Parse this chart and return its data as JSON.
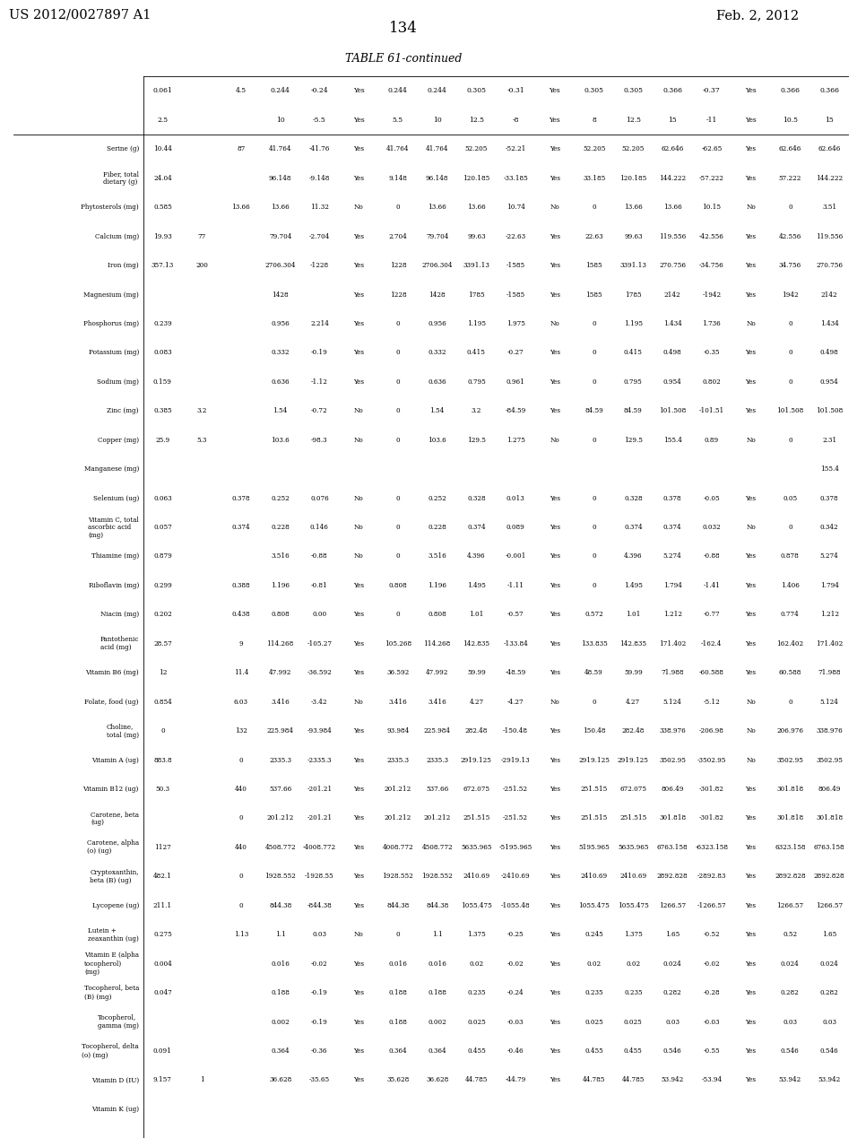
{
  "title_left": "US 2012/0027897 A1",
  "title_right": "Feb. 2, 2012",
  "page_num": "134",
  "table_title": "TABLE 61-continued",
  "row_labels": [
    "Serine (g)",
    "Fiber, total\ndietary (g)",
    "Phytosterols (mg)",
    "Calcium (mg)",
    "Iron (mg)",
    "Magnesium (mg)",
    "Phosphorus (mg)",
    "Potassium (mg)",
    "Sodium (mg)",
    "Zinc (mg)",
    "Copper (mg)",
    "Manganese (mg)",
    "Selenium (ug)",
    "Vitamin C, total\nascorbic acid\n(mg)",
    "Thiamine (mg)",
    "Riboflavin (mg)",
    "Niacin (mg)",
    "Pantothenic\nacid (mg)",
    "Vitamin B6 (mg)",
    "Folate, food (ug)",
    "Choline,\ntotal (mg)",
    "Vitamin A (ug)",
    "Vitamin B12 (ug)",
    "Carotene, beta\n(ug)",
    "Carotene, alpha\n(o) (ug)",
    "Cryptoxanthin,\nbeta (B) (ug)",
    "Lycopene (ug)",
    "Lutein +\nzeaxanthin (ug)",
    "Vitamin E (alpha\ntocopherol)\n(mg)",
    "Tocopherol, beta\n(B) (mg)",
    "Tocopherol,\ngamma (mg)",
    "Tocopherol, delta\n(o) (mg)",
    "Vitamin D (IU)",
    "Vitamin K (ug)"
  ],
  "col1_vals": [
    "0.061",
    "2.5"
  ],
  "col2_vals": [
    "",
    "4.5"
  ],
  "col3_vals": [
    "0.244",
    "10"
  ],
  "col4_vals": [
    "-0.24",
    "-5.5"
  ],
  "col5_vals": [
    "Yes",
    "Yes"
  ],
  "col6_vals": [
    "0.244",
    "5.5"
  ],
  "col7_vals": [
    "0.244",
    "10"
  ],
  "col8_vals": [
    "0.305",
    "12.5"
  ],
  "col9_vals": [
    "-0.31",
    "-8"
  ],
  "col10_vals": [
    "Yes",
    "Yes"
  ],
  "col11_vals": [
    "0.305",
    "8"
  ],
  "col12_vals": [
    "0.305",
    "12.5"
  ],
  "col13_vals": [
    "0.366",
    "15"
  ],
  "col14_vals": [
    "-0.37",
    "-11"
  ],
  "col15_vals": [
    "Yes",
    "Yes"
  ],
  "col16_vals": [
    "0.366",
    "10.5"
  ],
  "col17_vals": [
    "0.366",
    "15"
  ],
  "header_row1": [
    "0.061",
    "",
    "4.5",
    "0.244",
    "-0.24",
    "Yes",
    "0.244",
    "0.244",
    "0.305",
    "-0.31",
    "Yes",
    "0.305",
    "0.305",
    "0.366",
    "-0.37",
    "Yes",
    "0.366",
    "0.366"
  ],
  "header_row2": [
    "2.5",
    "",
    "",
    "10",
    "-5.5",
    "Yes",
    "5.5",
    "10",
    "12.5",
    "-8",
    "Yes",
    "8",
    "12.5",
    "15",
    "-11",
    "Yes",
    "10.5",
    "15"
  ],
  "data": [
    [
      "10.44",
      "",
      "87",
      "41.764",
      "-41.76",
      "Yes",
      "41.764",
      "41.764",
      "52.205",
      "-52.21",
      "Yes",
      "52.205",
      "52.205",
      "62.646",
      "-62.65",
      "Yes",
      "62.646",
      "62.646"
    ],
    [
      "24.04",
      "",
      "",
      "96.148",
      "-9.148",
      "Yes",
      "9.148",
      "96.148",
      "120.185",
      "-33.185",
      "Yes",
      "33.185",
      "120.185",
      "144.222",
      "-57.222",
      "Yes",
      "57.222",
      "144.222"
    ],
    [
      "0.585",
      "",
      "13.66",
      "13.66",
      "11.32",
      "No",
      "0",
      "13.66",
      "13.66",
      "10.74",
      "No",
      "0",
      "13.66",
      "13.66",
      "10.15",
      "No",
      "0",
      "3.51"
    ],
    [
      "19.93",
      "77",
      "",
      "79.704",
      "-2.704",
      "Yes",
      "2.704",
      "79.704",
      "99.63",
      "-22.63",
      "Yes",
      "22.63",
      "99.63",
      "119.556",
      "-42.556",
      "Yes",
      "42.556",
      "119.556"
    ],
    [
      "357.13",
      "200",
      "",
      "2706.304",
      "-1228",
      "Yes",
      "1228",
      "2706.304",
      "3391.13",
      "-1585",
      "Yes",
      "1585",
      "3391.13",
      "270.756",
      "-34.756",
      "Yes",
      "34.756",
      "270.756"
    ],
    [
      "",
      "",
      "",
      "1428",
      "",
      "Yes",
      "1228",
      "1428",
      "1785",
      "-1585",
      "Yes",
      "1585",
      "1785",
      "2142",
      "-1942",
      "Yes",
      "1942",
      "2142"
    ],
    [
      "0.239",
      "",
      "",
      "0.956",
      "2.214",
      "Yes",
      "0",
      "0.956",
      "1.195",
      "1.975",
      "No",
      "0",
      "1.195",
      "1.434",
      "1.736",
      "No",
      "0",
      "1.434"
    ],
    [
      "0.083",
      "",
      "",
      "0.332",
      "-0.19",
      "Yes",
      "0",
      "0.332",
      "0.415",
      "-0.27",
      "Yes",
      "0",
      "0.415",
      "0.498",
      "-0.35",
      "Yes",
      "0",
      "0.498"
    ],
    [
      "0.159",
      "",
      "",
      "0.636",
      "-1.12",
      "Yes",
      "0",
      "0.636",
      "0.795",
      "0.961",
      "Yes",
      "0",
      "0.795",
      "0.954",
      "0.802",
      "Yes",
      "0",
      "0.954"
    ],
    [
      "0.385",
      "3.2",
      "",
      "1.54",
      "-0.72",
      "No",
      "0",
      "1.54",
      "3.2",
      "-84.59",
      "Yes",
      "84.59",
      "84.59",
      "101.508",
      "-101.51",
      "Yes",
      "101.508",
      "101.508"
    ],
    [
      "25.9",
      "5.3",
      "",
      "103.6",
      "-98.3",
      "No",
      "0",
      "103.6",
      "129.5",
      "1.275",
      "No",
      "0",
      "129.5",
      "155.4",
      "0.89",
      "No",
      "0",
      "2.31"
    ],
    [
      "",
      "",
      "",
      "",
      "",
      "",
      "",
      "",
      "",
      "",
      "",
      "",
      "",
      "",
      "",
      "",
      "",
      "155.4"
    ],
    [
      "0.063",
      "",
      "0.378",
      "0.252",
      "0.076",
      "No",
      "0",
      "0.252",
      "0.328",
      "0.013",
      "Yes",
      "0",
      "0.328",
      "0.378",
      "-0.05",
      "Yes",
      "0.05",
      "0.378"
    ],
    [
      "0.057",
      "",
      "0.374",
      "0.228",
      "0.146",
      "No",
      "0",
      "0.228",
      "0.374",
      "0.089",
      "Yes",
      "0",
      "0.374",
      "0.374",
      "0.032",
      "No",
      "0",
      "0.342"
    ],
    [
      "0.879",
      "",
      "",
      "3.516",
      "-0.88",
      "No",
      "0",
      "3.516",
      "4.396",
      "-0.001",
      "Yes",
      "0",
      "4.396",
      "5.274",
      "-0.88",
      "Yes",
      "0.878",
      "5.274"
    ],
    [
      "0.299",
      "",
      "0.388",
      "1.196",
      "-0.81",
      "Yes",
      "0.808",
      "1.196",
      "1.495",
      "-1.11",
      "Yes",
      "0",
      "1.495",
      "1.794",
      "-1.41",
      "Yes",
      "1.406",
      "1.794"
    ],
    [
      "0.202",
      "",
      "0.438",
      "0.808",
      "0.00",
      "Yes",
      "0",
      "0.808",
      "1.01",
      "-0.57",
      "Yes",
      "0.572",
      "1.01",
      "1.212",
      "-0.77",
      "Yes",
      "0.774",
      "1.212"
    ],
    [
      "28.57",
      "",
      "9",
      "114.268",
      "-105.27",
      "Yes",
      "105.268",
      "114.268",
      "142.835",
      "-133.84",
      "Yes",
      "133.835",
      "142.835",
      "171.402",
      "-162.4",
      "Yes",
      "162.402",
      "171.402"
    ],
    [
      "12",
      "",
      "11.4",
      "47.992",
      "-36.592",
      "Yes",
      "36.592",
      "47.992",
      "59.99",
      "-48.59",
      "Yes",
      "48.59",
      "59.99",
      "71.988",
      "-60.588",
      "Yes",
      "60.588",
      "71.988"
    ],
    [
      "0.854",
      "",
      "6.03",
      "3.416",
      "-3.42",
      "No",
      "3.416",
      "3.416",
      "4.27",
      "-4.27",
      "No",
      "0",
      "4.27",
      "5.124",
      "-5.12",
      "No",
      "0",
      "5.124"
    ],
    [
      "0",
      "",
      "132",
      "225.984",
      "-93.984",
      "Yes",
      "93.984",
      "225.984",
      "282.48",
      "-150.48",
      "Yes",
      "150.48",
      "282.48",
      "338.976",
      "-206.98",
      "No",
      "206.976",
      "338.976"
    ],
    [
      "883.8",
      "",
      "0",
      "2335.3",
      "-2335.3",
      "Yes",
      "2335.3",
      "2335.3",
      "2919.125",
      "-2919.13",
      "Yes",
      "2919.125",
      "2919.125",
      "3502.95",
      "-3502.95",
      "No",
      "3502.95",
      "3502.95"
    ],
    [
      "50.3",
      "",
      "440",
      "537.66",
      "-201.21",
      "Yes",
      "201.212",
      "537.66",
      "672.075",
      "-251.52",
      "Yes",
      "251.515",
      "672.075",
      "806.49",
      "-301.82",
      "Yes",
      "301.818",
      "806.49"
    ],
    [
      "",
      "",
      "0",
      "201.212",
      "-201.21",
      "Yes",
      "201.212",
      "201.212",
      "251.515",
      "-251.52",
      "Yes",
      "251.515",
      "251.515",
      "301.818",
      "-301.82",
      "Yes",
      "301.818",
      "301.818"
    ],
    [
      "1127",
      "",
      "440",
      "4508.772",
      "-4008.772",
      "Yes",
      "4008.772",
      "4508.772",
      "5635.965",
      "-5195.965",
      "Yes",
      "5195.965",
      "5635.965",
      "6763.158",
      "-6323.158",
      "Yes",
      "6323.158",
      "6763.158"
    ],
    [
      "482.1",
      "",
      "0",
      "1928.552",
      "-1928.55",
      "Yes",
      "1928.552",
      "1928.552",
      "2410.69",
      "-2410.69",
      "Yes",
      "2410.69",
      "2410.69",
      "2892.828",
      "-2892.83",
      "Yes",
      "2892.828",
      "2892.828"
    ],
    [
      "211.1",
      "",
      "0",
      "844.38",
      "-844.38",
      "Yes",
      "844.38",
      "844.38",
      "1055.475",
      "-1055.48",
      "Yes",
      "1055.475",
      "1055.475",
      "1266.57",
      "-1266.57",
      "Yes",
      "1266.57",
      "1266.57"
    ],
    [
      "0.275",
      "",
      "1.13",
      "1.1",
      "0.03",
      "No",
      "0",
      "1.1",
      "1.375",
      "-0.25",
      "Yes",
      "0.245",
      "1.375",
      "1.65",
      "-0.52",
      "Yes",
      "0.52",
      "1.65"
    ],
    [
      "0.004",
      "",
      "",
      "0.016",
      "-0.02",
      "Yes",
      "0.016",
      "0.016",
      "0.02",
      "-0.02",
      "Yes",
      "0.02",
      "0.02",
      "0.024",
      "-0.02",
      "Yes",
      "0.024",
      "0.024"
    ],
    [
      "0.047",
      "",
      "",
      "0.188",
      "-0.19",
      "Yes",
      "0.188",
      "0.188",
      "0.235",
      "-0.24",
      "Yes",
      "0.235",
      "0.235",
      "0.282",
      "-0.28",
      "Yes",
      "0.282",
      "0.282"
    ],
    [
      "",
      "",
      "",
      "0.002",
      "-0.19",
      "Yes",
      "0.188",
      "0.002",
      "0.025",
      "-0.03",
      "Yes",
      "0.025",
      "0.025",
      "0.03",
      "-0.03",
      "Yes",
      "0.03",
      "0.03"
    ],
    [
      "0.091",
      "",
      "",
      "0.364",
      "-0.36",
      "Yes",
      "0.364",
      "0.364",
      "0.455",
      "-0.46",
      "Yes",
      "0.455",
      "0.455",
      "0.546",
      "-0.55",
      "Yes",
      "0.546",
      "0.546"
    ],
    [
      "9.157",
      "1",
      "",
      "36.628",
      "-35.65",
      "Yes",
      "35.628",
      "36.628",
      "44.785",
      "-44.79",
      "Yes",
      "44.785",
      "44.785",
      "53.942",
      "-53.94",
      "Yes",
      "53.942",
      "53.942"
    ]
  ],
  "background_color": "#ffffff",
  "text_color": "#000000",
  "font_size": 5.2,
  "header_font_size": 5.5
}
